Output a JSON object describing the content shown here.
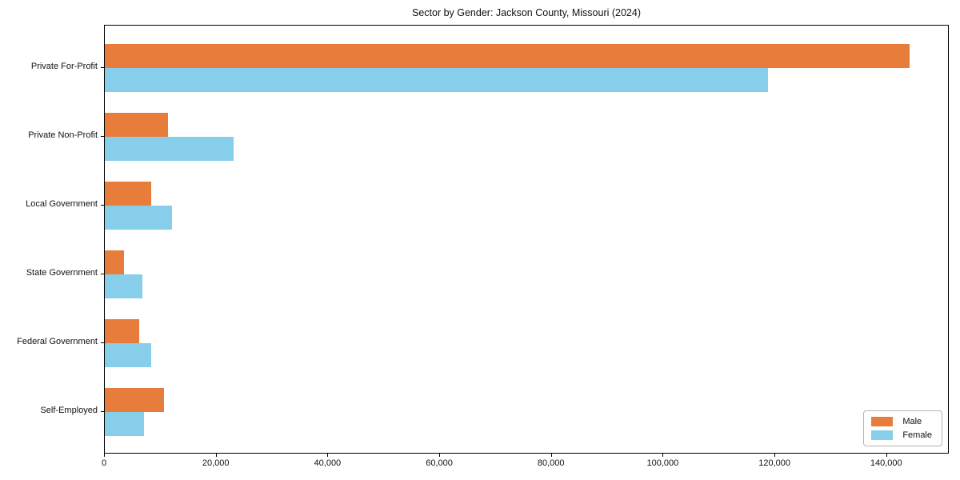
{
  "chart_data": {
    "type": "bar",
    "orientation": "horizontal",
    "title": "Sector by Gender: Jackson County, Missouri (2024)",
    "categories": [
      "Private For-Profit",
      "Private Non-Profit",
      "Local Government",
      "State Government",
      "Federal Government",
      "Self-Employed"
    ],
    "series": [
      {
        "name": "Male",
        "color": "#E87D3B",
        "values": [
          144000,
          11300,
          8300,
          3400,
          6100,
          10600
        ]
      },
      {
        "name": "Female",
        "color": "#87CEEB",
        "values": [
          118700,
          23000,
          12000,
          6800,
          8300,
          7000
        ]
      }
    ],
    "xlabel": "",
    "ylabel": "",
    "xlim": [
      0,
      151200
    ],
    "x_ticks": [
      0,
      20000,
      40000,
      60000,
      80000,
      100000,
      120000,
      140000
    ],
    "x_tick_labels": [
      "0",
      "20,000",
      "40,000",
      "60,000",
      "80,000",
      "100,000",
      "120,000",
      "140,000"
    ],
    "grid": false,
    "legend_position": "lower right",
    "axis_color": "#000000",
    "background_color": "#ffffff"
  },
  "legend": {
    "items": [
      {
        "label": "Male",
        "color": "#E87D3B"
      },
      {
        "label": "Female",
        "color": "#87CEEB"
      }
    ]
  }
}
